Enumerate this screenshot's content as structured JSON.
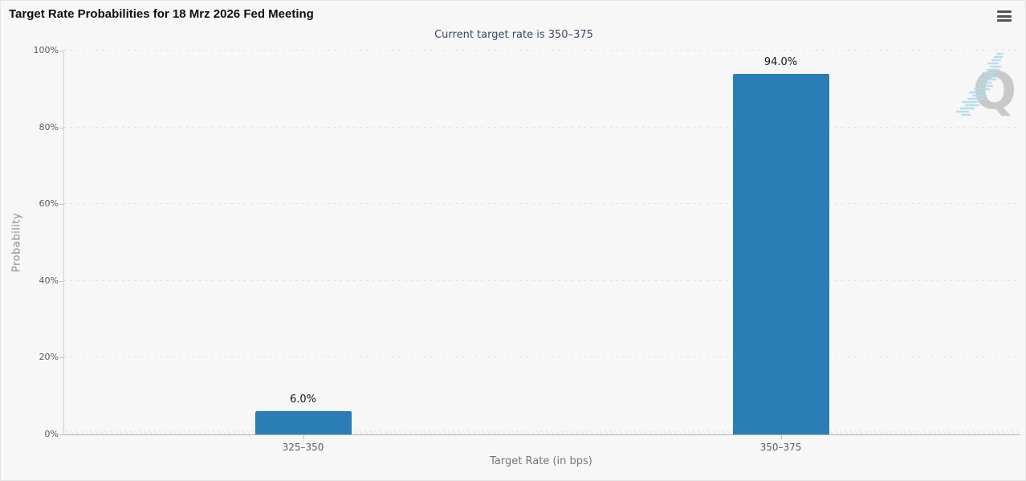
{
  "header": {
    "menu_icon": "hamburger-icon"
  },
  "chart_data": {
    "type": "bar",
    "title": "Target Rate Probabilities for 18 Mrz 2026 Fed Meeting",
    "subtitle": "Current target rate is 350–375",
    "categories": [
      "325–350",
      "350–375"
    ],
    "values": [
      6.0,
      94.0
    ],
    "value_labels": [
      "6.0%",
      "94.0%"
    ],
    "xlabel": "Target Rate (in bps)",
    "ylabel": "Probability",
    "ylim": [
      0,
      100
    ],
    "ytick_step": 20,
    "ytick_labels": [
      "0%",
      "20%",
      "40%",
      "60%",
      "80%",
      "100%"
    ],
    "grid": "horizontal dotted",
    "legend_position": "none",
    "bar_color": "#2a7db5"
  },
  "watermark": {
    "letter": "Q",
    "letter_color": "#c9c9c9",
    "streak_color": "#b3dce9"
  },
  "colors": {
    "background": "#f7f7f7",
    "title_text": "#0e0e0e",
    "subtitle_text": "#3c4963",
    "axis_text": "#5a5a5a",
    "bar": "#2a7db5"
  }
}
